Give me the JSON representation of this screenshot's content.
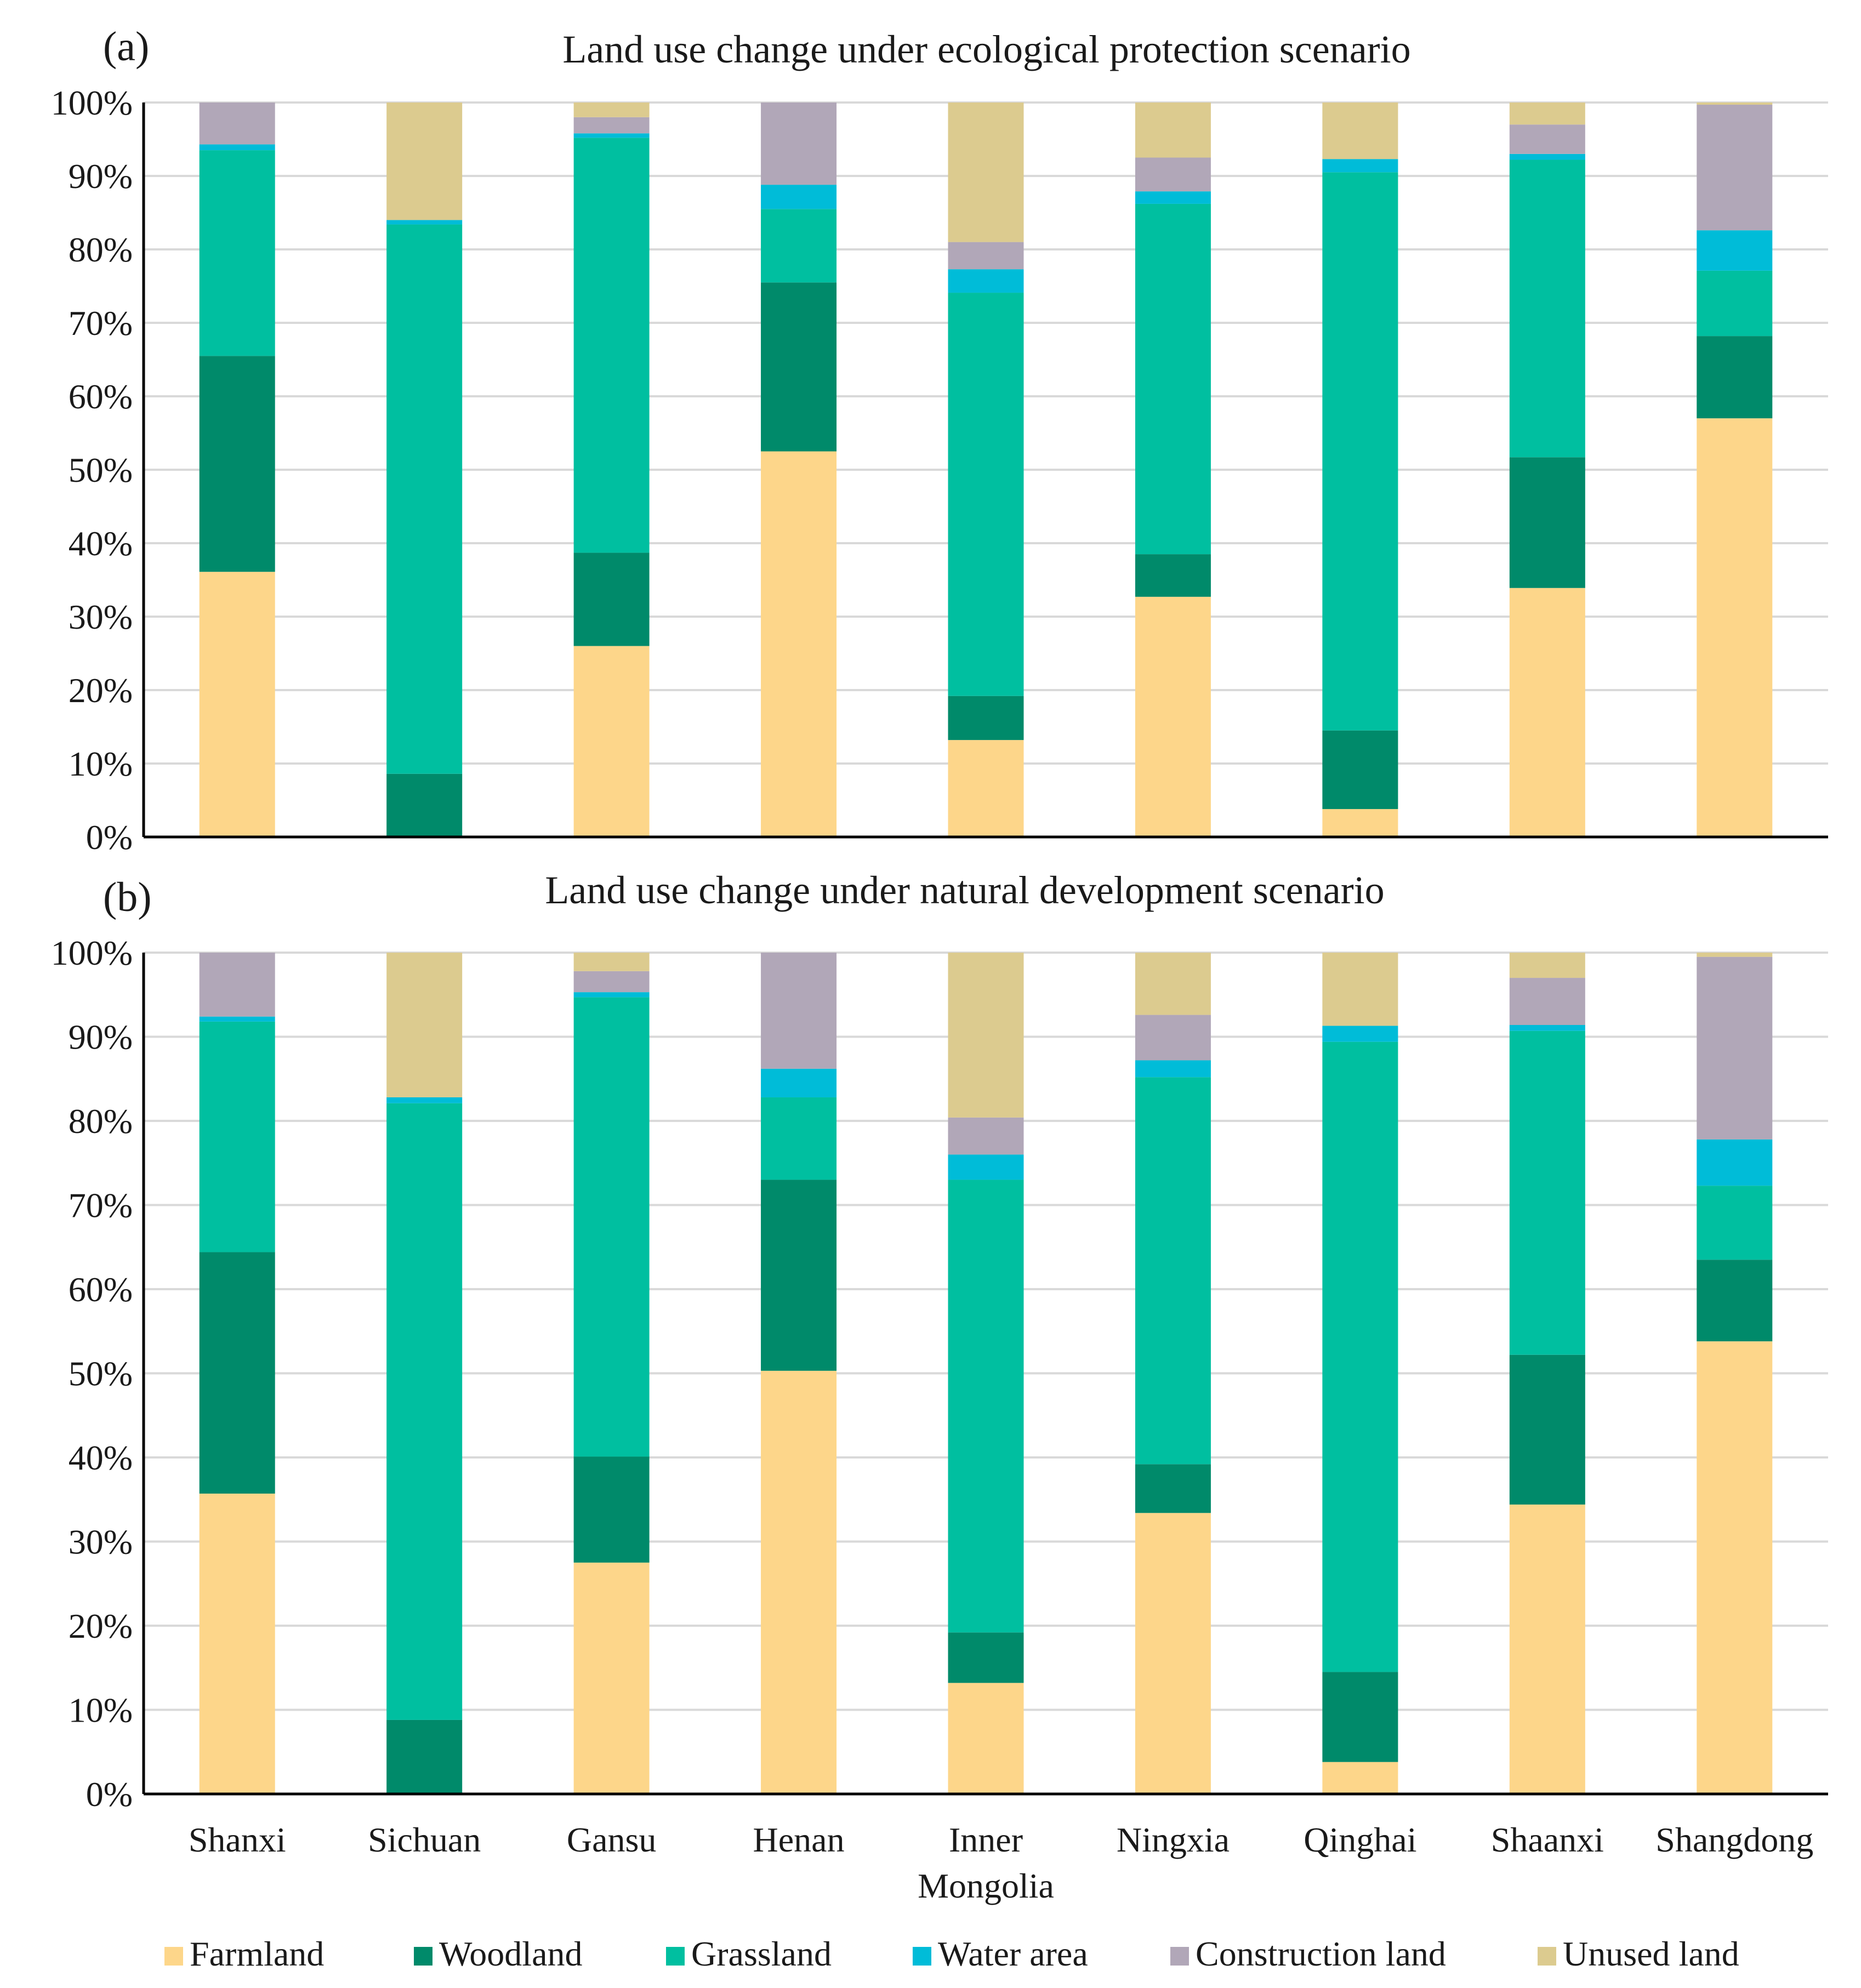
{
  "chart_data": [
    {
      "panel_label": "(a)",
      "title": "Land use change under ecological protection scenario",
      "type": "bar",
      "stacked": true,
      "ylim": [
        0,
        100
      ],
      "ytick_labels": [
        "0%",
        "10%",
        "20%",
        "30%",
        "40%",
        "50%",
        "60%",
        "70%",
        "80%",
        "90%",
        "100%"
      ],
      "grid": true,
      "categories": [
        "Shanxi",
        "Sichuan",
        "Gansu",
        "Henan",
        "Inner Mongolia",
        "Ningxia",
        "Qinghai",
        "Shaanxi",
        "Shangdong"
      ],
      "series": [
        {
          "name": "Farmland",
          "values": [
            36.1,
            0.0,
            26.0,
            52.5,
            13.2,
            32.7,
            3.8,
            33.9,
            57.0
          ]
        },
        {
          "name": "Woodland",
          "values": [
            29.4,
            8.6,
            12.7,
            23.0,
            6.0,
            5.8,
            10.7,
            17.8,
            11.2
          ]
        },
        {
          "name": "Grassland",
          "values": [
            28.0,
            74.8,
            56.5,
            10.0,
            54.9,
            47.7,
            76.0,
            40.5,
            8.9
          ]
        },
        {
          "name": "Water area",
          "values": [
            0.8,
            0.6,
            0.6,
            3.3,
            3.2,
            1.7,
            1.8,
            0.8,
            5.5
          ]
        },
        {
          "name": "Construction land",
          "values": [
            5.7,
            0.0,
            2.2,
            11.2,
            3.7,
            4.6,
            0.0,
            4.0,
            17.1
          ]
        },
        {
          "name": "Unused land",
          "values": [
            0.0,
            16.0,
            2.0,
            0.0,
            19.0,
            7.5,
            7.7,
            3.0,
            0.3
          ]
        }
      ]
    },
    {
      "panel_label": "(b)",
      "title": "Land use change under natural development scenario",
      "type": "bar",
      "stacked": true,
      "ylim": [
        0,
        100
      ],
      "ytick_labels": [
        "0%",
        "10%",
        "20%",
        "30%",
        "40%",
        "50%",
        "60%",
        "70%",
        "80%",
        "90%",
        "100%"
      ],
      "grid": true,
      "categories": [
        "Shanxi",
        "Sichuan",
        "Gansu",
        "Henan",
        "Inner Mongolia",
        "Ningxia",
        "Qinghai",
        "Shaanxi",
        "Shangdong"
      ],
      "series": [
        {
          "name": "Farmland",
          "values": [
            35.7,
            0.0,
            27.5,
            50.3,
            13.2,
            33.4,
            3.8,
            34.4,
            53.8
          ]
        },
        {
          "name": "Woodland",
          "values": [
            28.7,
            8.8,
            12.6,
            22.7,
            6.0,
            5.8,
            10.7,
            17.8,
            9.7
          ]
        },
        {
          "name": "Grassland",
          "values": [
            27.4,
            73.3,
            54.6,
            9.8,
            53.8,
            46.0,
            74.9,
            38.5,
            8.8
          ]
        },
        {
          "name": "Water area",
          "values": [
            0.6,
            0.7,
            0.6,
            3.4,
            3.0,
            2.0,
            1.9,
            0.7,
            5.5
          ]
        },
        {
          "name": "Construction land",
          "values": [
            7.6,
            0.0,
            2.5,
            13.8,
            4.4,
            5.4,
            0.0,
            5.6,
            21.7
          ]
        },
        {
          "name": "Unused land",
          "values": [
            0.0,
            17.2,
            2.2,
            0.0,
            19.6,
            7.4,
            8.7,
            3.0,
            0.5
          ]
        }
      ]
    }
  ],
  "legend": [
    {
      "name": "Farmland",
      "color": "#FDD68A"
    },
    {
      "name": "Woodland",
      "color": "#008A6A"
    },
    {
      "name": "Grassland",
      "color": "#00BFA0"
    },
    {
      "name": "Water area",
      "color": "#00BCD8"
    },
    {
      "name": "Construction land",
      "color": "#B1A7B8"
    },
    {
      "name": "Unused land",
      "color": "#DCCB8F"
    }
  ],
  "category_display": [
    "Shanxi",
    "Sichuan",
    "Gansu",
    "Henan",
    "Inner|Mongolia",
    "Ningxia",
    "Qinghai",
    "Shaanxi",
    "Shangdong"
  ]
}
